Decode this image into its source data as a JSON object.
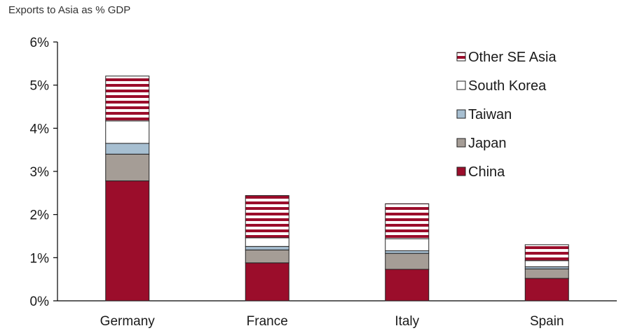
{
  "chart_data": {
    "type": "bar",
    "stacked": true,
    "title": "Exports to Asia as % GDP",
    "categories": [
      "Germany",
      "France",
      "Italy",
      "Spain"
    ],
    "ylim": [
      0,
      6
    ],
    "yticks": [
      0,
      1,
      2,
      3,
      4,
      5,
      6
    ],
    "ytick_labels": [
      "0%",
      "1%",
      "2%",
      "3%",
      "4%",
      "5%",
      "6%"
    ],
    "legend_position": "top-right",
    "grid": false,
    "series": [
      {
        "name": "China",
        "values": [
          2.78,
          0.88,
          0.73,
          0.52
        ],
        "color": "#9b0d2b",
        "pattern": "solid"
      },
      {
        "name": "Japan",
        "values": [
          0.62,
          0.3,
          0.37,
          0.22
        ],
        "color": "#a59d96",
        "pattern": "solid"
      },
      {
        "name": "Taiwan",
        "values": [
          0.25,
          0.08,
          0.06,
          0.05
        ],
        "color": "#a7bfd1",
        "pattern": "solid"
      },
      {
        "name": "South Korea",
        "values": [
          0.52,
          0.2,
          0.28,
          0.14
        ],
        "color": "#ffffff",
        "pattern": "solid"
      },
      {
        "name": "Other SE Asia",
        "values": [
          1.04,
          0.98,
          0.81,
          0.37
        ],
        "color": "#9b0d2b",
        "pattern": "stripes"
      }
    ]
  }
}
